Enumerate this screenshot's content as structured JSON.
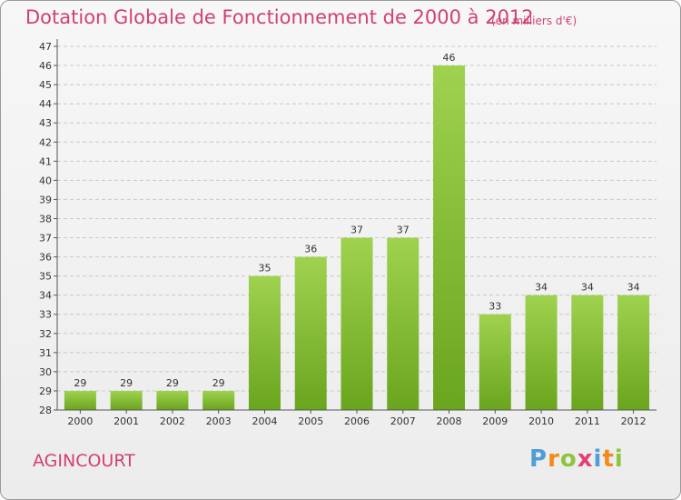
{
  "header": {
    "title": "Dotation Globale de Fonctionnement de 2000 à 2012",
    "subtitle": "(en milliers d'€)"
  },
  "commune": "AGINCOURT",
  "logo": {
    "text": "Proxiti"
  },
  "colors": {
    "accent": "#d0426e",
    "bar_top": "#9fd24f",
    "bar_bottom": "#6aa51e",
    "grid": "#c8c8c8"
  },
  "chart_data": {
    "type": "bar",
    "title": "Dotation Globale de Fonctionnement de 2000 à 2012",
    "subtitle": "(en milliers d'€)",
    "xlabel": "",
    "ylabel": "",
    "ylim": [
      28,
      47
    ],
    "grid": true,
    "categories": [
      "2000",
      "2001",
      "2002",
      "2003",
      "2004",
      "2005",
      "2006",
      "2007",
      "2008",
      "2009",
      "2010",
      "2011",
      "2012"
    ],
    "values": [
      29,
      29,
      29,
      29,
      35,
      36,
      37,
      37,
      46,
      33,
      34,
      34,
      34
    ],
    "yticks": [
      "28",
      "29",
      "30",
      "31",
      "32",
      "33",
      "34",
      "35",
      "36",
      "37",
      "38",
      "39",
      "40",
      "41",
      "42",
      "43",
      "44",
      "45",
      "46",
      "47"
    ]
  }
}
